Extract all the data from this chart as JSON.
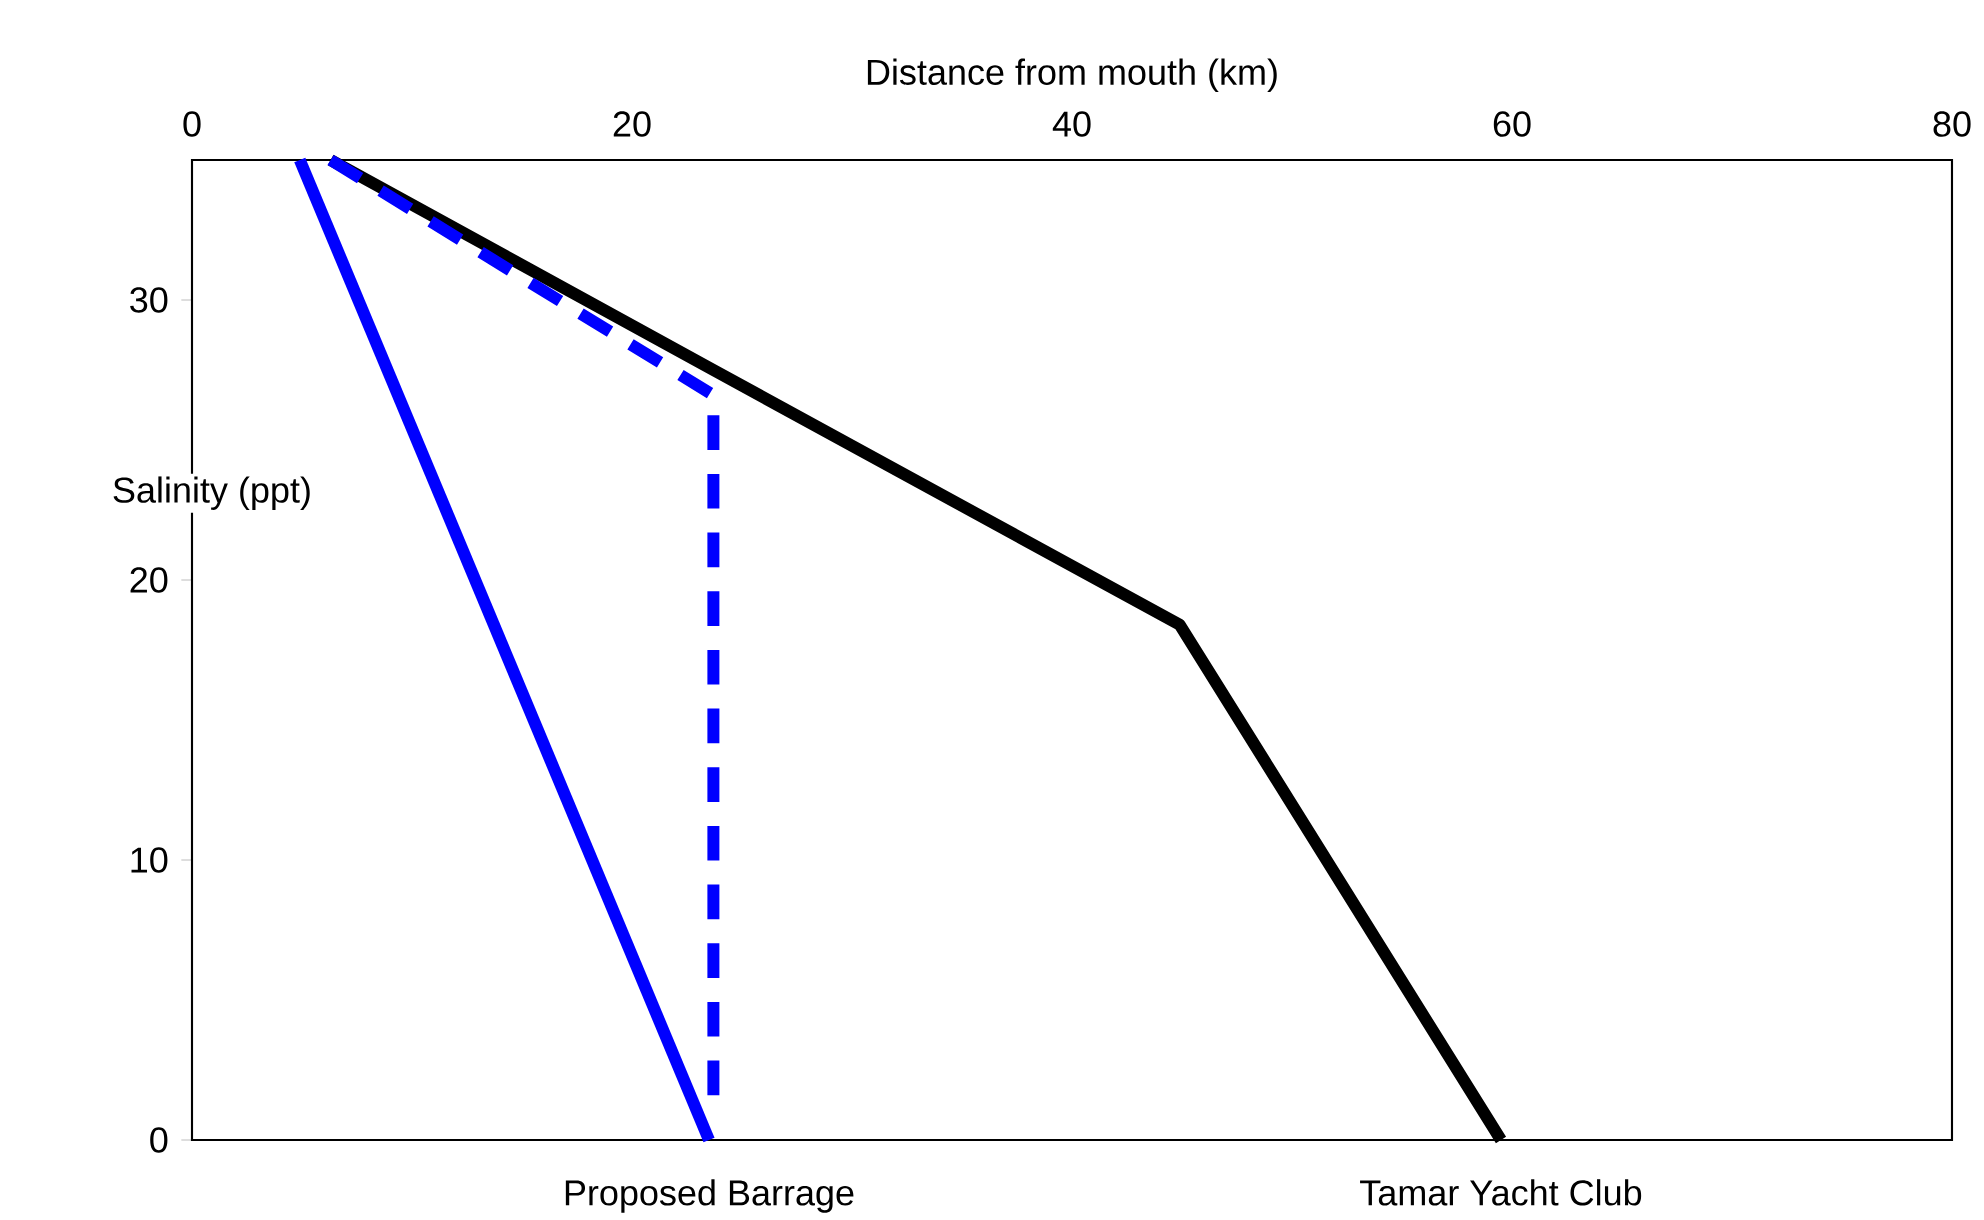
{
  "chart_data": {
    "type": "line",
    "xlabel": "Distance from mouth (km)",
    "ylabel": "Salinity (ppt)",
    "xlim": [
      0,
      80
    ],
    "ylim": [
      0,
      35
    ],
    "xticks": [
      0,
      20,
      40,
      60,
      80
    ],
    "yticks": [
      0,
      10,
      20,
      30
    ],
    "marker": "none",
    "series": [
      {
        "color": "#000000",
        "x": [
          6.3,
          23.7,
          44.9,
          59.5
        ],
        "values": [
          35,
          27.5,
          18.4,
          0
        ],
        "line_style": "solid"
      },
      {
        "color": "#0000ff",
        "x": [
          4.9,
          23.5
        ],
        "values": [
          35,
          0
        ],
        "line_style": "solid"
      },
      {
        "color": "#0000ff",
        "x": [
          6.3,
          23.7,
          23.7
        ],
        "values": [
          35,
          26.6,
          1
        ],
        "line_style": "dashed"
      }
    ],
    "annotations": [
      {
        "text": "Proposed Barrage",
        "x": 23.5,
        "y": 0
      },
      {
        "text": "Tamar Yacht Club",
        "x": 59.5,
        "y": 0
      }
    ]
  }
}
